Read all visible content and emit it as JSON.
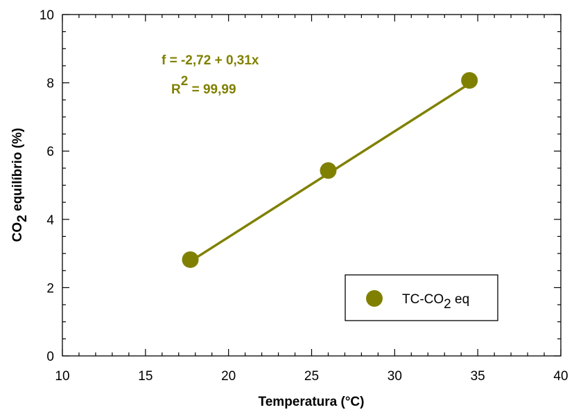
{
  "chart_data": {
    "type": "scatter",
    "xlabel": "Temperatura (°C)",
    "ylabel": {
      "main": "CO",
      "sub": "2",
      "rest": " equilíbrio (%)"
    },
    "xlim": [
      10,
      40
    ],
    "ylim": [
      0,
      10
    ],
    "x_ticks": [
      "10",
      "15",
      "20",
      "25",
      "30",
      "35",
      "40"
    ],
    "y_ticks": [
      "0",
      "2",
      "4",
      "6",
      "8",
      "10"
    ],
    "grid": false,
    "series": [
      {
        "name": {
          "main": "TC-CO",
          "sub": "2",
          "rest": " eq"
        },
        "color": "#808000",
        "points": [
          {
            "x": 17.7,
            "y": 2.82
          },
          {
            "x": 26.0,
            "y": 5.43
          },
          {
            "x": 34.5,
            "y": 8.07
          }
        ]
      }
    ],
    "fit": {
      "equation": "f = -2,72 + 0,31x",
      "r2_prefix": "R",
      "r2_exp": "2",
      "r2_value": " = 99,99",
      "intercept": -2.72,
      "slope": 0.31,
      "color": "#808000"
    },
    "legend_position": "bottom-right"
  }
}
